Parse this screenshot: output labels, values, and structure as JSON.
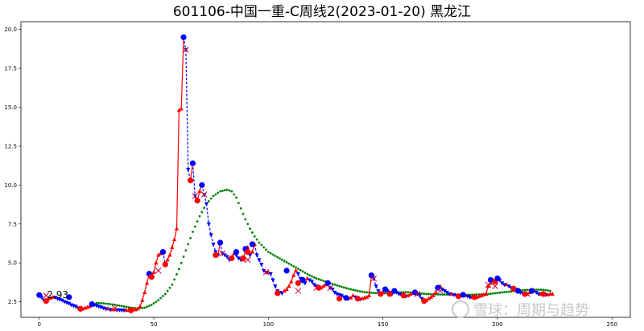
{
  "chart_data": {
    "type": "line",
    "title": "601106-中国一重-C周线2(2023-01-20) 黑龙江",
    "xlim": [
      -8,
      258
    ],
    "ylim": [
      1.5,
      20.5
    ],
    "x_ticks": [
      0,
      50,
      100,
      150,
      200,
      250
    ],
    "y_ticks": [
      2.5,
      5.0,
      7.5,
      10.0,
      12.5,
      15.0,
      17.5,
      20.0
    ],
    "y_tick_labels": [
      "2.5",
      "5.0",
      "7.5",
      "10.0",
      "12.5",
      "15.0",
      "17.5",
      "20.0"
    ],
    "annotation": {
      "x": 3,
      "y": 2.9,
      "text": "2.93"
    },
    "watermark": "雪球：周期与趋势",
    "colors": {
      "up": "#ff0000",
      "down": "#0000ff",
      "ma": "#008000"
    },
    "price_series": [
      [
        0,
        2.93
      ],
      [
        1,
        2.8
      ],
      [
        2,
        2.6
      ],
      [
        3,
        2.55
      ],
      [
        4,
        2.7
      ],
      [
        5,
        2.75
      ],
      [
        6,
        2.8
      ],
      [
        7,
        2.78
      ],
      [
        8,
        2.7
      ],
      [
        9,
        2.65
      ],
      [
        10,
        2.6
      ],
      [
        11,
        2.5
      ],
      [
        12,
        2.45
      ],
      [
        13,
        2.4
      ],
      [
        14,
        2.3
      ],
      [
        15,
        2.25
      ],
      [
        16,
        2.2
      ],
      [
        17,
        2.1
      ],
      [
        18,
        2.05
      ],
      [
        19,
        2.05
      ],
      [
        20,
        2.1
      ],
      [
        21,
        2.15
      ],
      [
        22,
        2.2
      ],
      [
        23,
        2.35
      ],
      [
        24,
        2.3
      ],
      [
        25,
        2.25
      ],
      [
        26,
        2.2
      ],
      [
        27,
        2.15
      ],
      [
        28,
        2.1
      ],
      [
        29,
        2.05
      ],
      [
        30,
        2.05
      ],
      [
        31,
        2.0
      ],
      [
        32,
        2.0
      ],
      [
        33,
        2.0
      ],
      [
        34,
        1.98
      ],
      [
        35,
        1.97
      ],
      [
        36,
        1.96
      ],
      [
        37,
        1.95
      ],
      [
        38,
        1.95
      ],
      [
        39,
        1.95
      ],
      [
        40,
        1.95
      ],
      [
        41,
        2.0
      ],
      [
        42,
        2.0
      ],
      [
        43,
        2.05
      ],
      [
        44,
        2.2
      ],
      [
        45,
        2.6
      ],
      [
        46,
        3.1
      ],
      [
        47,
        3.7
      ],
      [
        48,
        4.3
      ],
      [
        49,
        4.1
      ],
      [
        50,
        4.4
      ],
      [
        51,
        5.0
      ],
      [
        52,
        5.5
      ],
      [
        53,
        5.6
      ],
      [
        54,
        5.7
      ],
      [
        55,
        4.9
      ],
      [
        56,
        5.2
      ],
      [
        57,
        5.5
      ],
      [
        58,
        6.0
      ],
      [
        59,
        6.5
      ],
      [
        60,
        7.2
      ],
      [
        61,
        14.8
      ],
      [
        62,
        14.9
      ],
      [
        63,
        19.5
      ],
      [
        64,
        18.7
      ],
      [
        65,
        11.0
      ],
      [
        66,
        10.3
      ],
      [
        67,
        11.4
      ],
      [
        68,
        9.3
      ],
      [
        69,
        9.0
      ],
      [
        70,
        9.6
      ],
      [
        71,
        10.0
      ],
      [
        72,
        9.4
      ],
      [
        73,
        8.8
      ],
      [
        74,
        7.5
      ],
      [
        75,
        6.8
      ],
      [
        76,
        6.2
      ],
      [
        77,
        5.7
      ],
      [
        78,
        5.5
      ],
      [
        79,
        6.3
      ],
      [
        80,
        5.6
      ],
      [
        81,
        5.5
      ],
      [
        82,
        5.4
      ],
      [
        83,
        5.2
      ],
      [
        84,
        5.3
      ],
      [
        85,
        5.6
      ],
      [
        86,
        5.5
      ],
      [
        87,
        5.3
      ],
      [
        88,
        5.2
      ],
      [
        89,
        5.2
      ],
      [
        90,
        5.8
      ],
      [
        91,
        6.0
      ],
      [
        92,
        5.5
      ],
      [
        93,
        5.7
      ],
      [
        94,
        6.2
      ],
      [
        95,
        5.5
      ],
      [
        96,
        5.2
      ],
      [
        97,
        4.9
      ],
      [
        98,
        4.5
      ],
      [
        99,
        4.4
      ],
      [
        100,
        4.4
      ],
      [
        101,
        4.3
      ],
      [
        102,
        3.9
      ],
      [
        103,
        3.5
      ],
      [
        104,
        3.2
      ],
      [
        105,
        3.1
      ],
      [
        106,
        3.05
      ],
      [
        107,
        3.2
      ],
      [
        108,
        3.3
      ],
      [
        109,
        3.5
      ],
      [
        110,
        3.8
      ],
      [
        111,
        4.2
      ],
      [
        112,
        4.5
      ],
      [
        113,
        4.3
      ],
      [
        114,
        4.0
      ],
      [
        115,
        3.8
      ],
      [
        116,
        3.7
      ],
      [
        117,
        4.0
      ],
      [
        118,
        3.9
      ],
      [
        119,
        3.8
      ],
      [
        120,
        3.6
      ],
      [
        121,
        3.5
      ],
      [
        122,
        3.4
      ],
      [
        123,
        3.4
      ],
      [
        124,
        3.5
      ],
      [
        125,
        3.6
      ],
      [
        126,
        3.7
      ],
      [
        127,
        3.4
      ],
      [
        128,
        3.3
      ],
      [
        129,
        3.1
      ],
      [
        130,
        3.0
      ],
      [
        131,
        2.95
      ],
      [
        132,
        2.9
      ],
      [
        133,
        2.8
      ],
      [
        134,
        2.75
      ],
      [
        135,
        2.7
      ],
      [
        136,
        2.75
      ],
      [
        137,
        2.9
      ],
      [
        138,
        2.8
      ],
      [
        139,
        2.7
      ],
      [
        140,
        2.65
      ],
      [
        141,
        2.7
      ],
      [
        142,
        2.75
      ],
      [
        143,
        2.8
      ],
      [
        144,
        2.9
      ],
      [
        145,
        4.2
      ],
      [
        146,
        4.0
      ],
      [
        147,
        3.5
      ],
      [
        148,
        3.2
      ],
      [
        149,
        3.0
      ],
      [
        150,
        3.1
      ],
      [
        151,
        3.3
      ],
      [
        152,
        3.2
      ],
      [
        153,
        3.1
      ],
      [
        154,
        3.0
      ],
      [
        155,
        3.2
      ],
      [
        156,
        3.1
      ],
      [
        157,
        3.0
      ],
      [
        158,
        2.95
      ],
      [
        159,
        2.9
      ],
      [
        160,
        2.85
      ],
      [
        161,
        2.9
      ],
      [
        162,
        3.0
      ],
      [
        163,
        3.05
      ],
      [
        164,
        3.1
      ],
      [
        165,
        3.0
      ],
      [
        166,
        2.9
      ],
      [
        167,
        2.7
      ],
      [
        168,
        2.55
      ],
      [
        169,
        2.6
      ],
      [
        170,
        2.7
      ],
      [
        171,
        2.8
      ],
      [
        172,
        2.9
      ],
      [
        173,
        3.1
      ],
      [
        174,
        3.4
      ],
      [
        175,
        3.5
      ],
      [
        176,
        3.3
      ],
      [
        177,
        3.2
      ],
      [
        178,
        3.1
      ],
      [
        179,
        3.0
      ],
      [
        180,
        3.0
      ],
      [
        181,
        2.95
      ],
      [
        182,
        2.9
      ],
      [
        183,
        2.85
      ],
      [
        184,
        2.9
      ],
      [
        185,
        2.9
      ],
      [
        186,
        2.9
      ],
      [
        187,
        2.85
      ],
      [
        188,
        2.8
      ],
      [
        189,
        2.8
      ],
      [
        190,
        2.8
      ],
      [
        191,
        2.8
      ],
      [
        192,
        2.85
      ],
      [
        193,
        2.9
      ],
      [
        194,
        2.95
      ],
      [
        195,
        3.0
      ],
      [
        196,
        3.5
      ],
      [
        197,
        3.7
      ],
      [
        198,
        3.9
      ],
      [
        199,
        3.8
      ],
      [
        200,
        4.0
      ],
      [
        201,
        3.9
      ],
      [
        202,
        3.7
      ],
      [
        203,
        3.6
      ],
      [
        204,
        3.6
      ],
      [
        205,
        3.5
      ],
      [
        206,
        3.4
      ],
      [
        207,
        3.35
      ],
      [
        208,
        3.3
      ],
      [
        209,
        3.2
      ],
      [
        210,
        3.1
      ],
      [
        211,
        3.05
      ],
      [
        212,
        3.0
      ],
      [
        213,
        3.0
      ],
      [
        214,
        3.1
      ],
      [
        215,
        3.2
      ],
      [
        216,
        3.2
      ],
      [
        217,
        3.1
      ],
      [
        218,
        3.0
      ],
      [
        219,
        3.0
      ],
      [
        220,
        3.0
      ],
      [
        221,
        2.95
      ],
      [
        222,
        2.95
      ],
      [
        223,
        3.0
      ],
      [
        224,
        3.0
      ]
    ],
    "ma_series": [
      [
        25,
        2.42
      ],
      [
        28,
        2.4
      ],
      [
        31,
        2.35
      ],
      [
        34,
        2.28
      ],
      [
        37,
        2.2
      ],
      [
        40,
        2.12
      ],
      [
        43,
        2.08
      ],
      [
        46,
        2.12
      ],
      [
        49,
        2.3
      ],
      [
        52,
        2.6
      ],
      [
        55,
        3.0
      ],
      [
        58,
        3.6
      ],
      [
        61,
        4.6
      ],
      [
        64,
        5.8
      ],
      [
        67,
        7.0
      ],
      [
        70,
        8.0
      ],
      [
        73,
        8.8
      ],
      [
        76,
        9.3
      ],
      [
        79,
        9.6
      ],
      [
        82,
        9.7
      ],
      [
        84,
        9.6
      ],
      [
        86,
        9.2
      ],
      [
        88,
        8.5
      ],
      [
        90,
        7.8
      ],
      [
        92,
        7.2
      ],
      [
        94,
        6.7
      ],
      [
        96,
        6.3
      ],
      [
        98,
        6.0
      ],
      [
        100,
        5.7
      ],
      [
        103,
        5.45
      ],
      [
        106,
        5.2
      ],
      [
        109,
        4.95
      ],
      [
        112,
        4.7
      ],
      [
        115,
        4.45
      ],
      [
        118,
        4.2
      ],
      [
        121,
        4.0
      ],
      [
        124,
        3.85
      ],
      [
        127,
        3.7
      ],
      [
        130,
        3.55
      ],
      [
        133,
        3.42
      ],
      [
        136,
        3.3
      ],
      [
        139,
        3.2
      ],
      [
        142,
        3.12
      ],
      [
        145,
        3.08
      ],
      [
        148,
        3.05
      ],
      [
        151,
        3.05
      ],
      [
        154,
        3.07
      ],
      [
        157,
        3.1
      ],
      [
        160,
        3.12
      ],
      [
        163,
        3.1
      ],
      [
        166,
        3.05
      ],
      [
        169,
        3.0
      ],
      [
        172,
        2.98
      ],
      [
        175,
        2.97
      ],
      [
        178,
        2.96
      ],
      [
        181,
        2.95
      ],
      [
        184,
        2.95
      ],
      [
        187,
        2.95
      ],
      [
        190,
        2.96
      ],
      [
        193,
        2.98
      ],
      [
        196,
        3.0
      ],
      [
        199,
        3.05
      ],
      [
        202,
        3.1
      ],
      [
        205,
        3.15
      ],
      [
        208,
        3.2
      ],
      [
        211,
        3.25
      ],
      [
        214,
        3.27
      ],
      [
        217,
        3.28
      ],
      [
        220,
        3.27
      ],
      [
        223,
        3.2
      ]
    ],
    "big_markers": [
      {
        "x": 0,
        "y": 2.93,
        "c": "down"
      },
      {
        "x": 3,
        "y": 2.55,
        "c": "up"
      },
      {
        "x": 13,
        "y": 2.8,
        "c": "down"
      },
      {
        "x": 18,
        "y": 2.05,
        "c": "up"
      },
      {
        "x": 23,
        "y": 2.35,
        "c": "down"
      },
      {
        "x": 40,
        "y": 1.95,
        "c": "up"
      },
      {
        "x": 48,
        "y": 4.3,
        "c": "down"
      },
      {
        "x": 49,
        "y": 4.1,
        "c": "up"
      },
      {
        "x": 54,
        "y": 5.7,
        "c": "down"
      },
      {
        "x": 55,
        "y": 4.9,
        "c": "up"
      },
      {
        "x": 63,
        "y": 19.5,
        "c": "down"
      },
      {
        "x": 66,
        "y": 10.3,
        "c": "up"
      },
      {
        "x": 67,
        "y": 11.4,
        "c": "down"
      },
      {
        "x": 69,
        "y": 9.0,
        "c": "up"
      },
      {
        "x": 71,
        "y": 10.0,
        "c": "down"
      },
      {
        "x": 77,
        "y": 5.5,
        "c": "up"
      },
      {
        "x": 79,
        "y": 6.3,
        "c": "down"
      },
      {
        "x": 84,
        "y": 5.3,
        "c": "up"
      },
      {
        "x": 86,
        "y": 5.7,
        "c": "down"
      },
      {
        "x": 89,
        "y": 5.3,
        "c": "up"
      },
      {
        "x": 90,
        "y": 5.9,
        "c": "down"
      },
      {
        "x": 91,
        "y": 5.7,
        "c": "up"
      },
      {
        "x": 93,
        "y": 6.2,
        "c": "down"
      },
      {
        "x": 104,
        "y": 3.05,
        "c": "up"
      },
      {
        "x": 108,
        "y": 4.5,
        "c": "down"
      },
      {
        "x": 113,
        "y": 3.7,
        "c": "up"
      },
      {
        "x": 115,
        "y": 3.9,
        "c": "down"
      },
      {
        "x": 122,
        "y": 3.4,
        "c": "up"
      },
      {
        "x": 126,
        "y": 3.7,
        "c": "down"
      },
      {
        "x": 131,
        "y": 2.7,
        "c": "up"
      },
      {
        "x": 134,
        "y": 2.75,
        "c": "down"
      },
      {
        "x": 139,
        "y": 2.7,
        "c": "up"
      },
      {
        "x": 145,
        "y": 4.2,
        "c": "down"
      },
      {
        "x": 149,
        "y": 3.0,
        "c": "up"
      },
      {
        "x": 151,
        "y": 3.3,
        "c": "down"
      },
      {
        "x": 153,
        "y": 3.0,
        "c": "up"
      },
      {
        "x": 155,
        "y": 3.2,
        "c": "down"
      },
      {
        "x": 159,
        "y": 2.9,
        "c": "up"
      },
      {
        "x": 164,
        "y": 3.1,
        "c": "down"
      },
      {
        "x": 168,
        "y": 2.55,
        "c": "up"
      },
      {
        "x": 174,
        "y": 3.4,
        "c": "down"
      },
      {
        "x": 183,
        "y": 2.85,
        "c": "up"
      },
      {
        "x": 185,
        "y": 2.95,
        "c": "down"
      },
      {
        "x": 190,
        "y": 2.8,
        "c": "up"
      },
      {
        "x": 197,
        "y": 3.9,
        "c": "down"
      },
      {
        "x": 199,
        "y": 3.8,
        "c": "up"
      },
      {
        "x": 200,
        "y": 4.0,
        "c": "down"
      },
      {
        "x": 207,
        "y": 3.35,
        "c": "up"
      },
      {
        "x": 209,
        "y": 3.2,
        "c": "down"
      },
      {
        "x": 212,
        "y": 3.0,
        "c": "up"
      },
      {
        "x": 215,
        "y": 3.2,
        "c": "down"
      },
      {
        "x": 220,
        "y": 3.0,
        "c": "up"
      }
    ],
    "x_markers": [
      {
        "x": 3,
        "y": 2.9
      },
      {
        "x": 33,
        "y": 2.1
      },
      {
        "x": 52,
        "y": 4.5
      },
      {
        "x": 64,
        "y": 18.7
      },
      {
        "x": 68,
        "y": 9.3
      },
      {
        "x": 72,
        "y": 9.4
      },
      {
        "x": 80,
        "y": 5.6
      },
      {
        "x": 91,
        "y": 5.2
      },
      {
        "x": 99,
        "y": 4.4
      },
      {
        "x": 113,
        "y": 3.2
      },
      {
        "x": 121,
        "y": 3.4
      },
      {
        "x": 127,
        "y": 3.4
      },
      {
        "x": 146,
        "y": 4.0
      },
      {
        "x": 165,
        "y": 3.0
      },
      {
        "x": 175,
        "y": 3.2
      },
      {
        "x": 196,
        "y": 3.6
      },
      {
        "x": 199,
        "y": 3.5
      },
      {
        "x": 213,
        "y": 3.0
      }
    ]
  }
}
